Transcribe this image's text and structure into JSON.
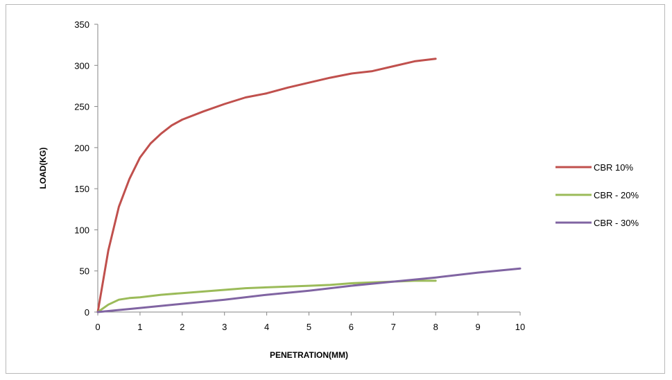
{
  "chart_data": {
    "type": "line",
    "title": "",
    "xlabel": "PENETRATION(MM)",
    "ylabel": "LOAD(KG)",
    "xlim": [
      0,
      10
    ],
    "ylim": [
      0,
      350
    ],
    "xticks": [
      0,
      1,
      2,
      3,
      4,
      5,
      6,
      7,
      8,
      9,
      10
    ],
    "yticks": [
      0,
      50,
      100,
      150,
      200,
      250,
      300,
      350
    ],
    "grid": false,
    "legend_position": "right",
    "series": [
      {
        "name": "CBR 10%",
        "color": "#c0504d",
        "x": [
          0,
          0.25,
          0.5,
          0.75,
          1,
          1.25,
          1.5,
          1.75,
          2,
          2.5,
          3,
          3.5,
          4,
          4.5,
          5,
          5.5,
          6,
          6.5,
          7,
          7.5,
          8
        ],
        "y": [
          0,
          75,
          128,
          162,
          188,
          205,
          217,
          227,
          234,
          244,
          253,
          261,
          266,
          273,
          279,
          285,
          290,
          293,
          299,
          305,
          308
        ]
      },
      {
        "name": "CBR  - 20%",
        "color": "#9bbb59",
        "x": [
          0,
          0.25,
          0.5,
          0.75,
          1,
          1.5,
          2,
          2.5,
          3,
          3.5,
          4,
          4.5,
          5,
          5.5,
          6,
          6.5,
          7,
          7.5,
          8
        ],
        "y": [
          0,
          9,
          15,
          17,
          18,
          21,
          23,
          25,
          27,
          29,
          30,
          31,
          32,
          33,
          35,
          36,
          37,
          38,
          38
        ]
      },
      {
        "name": "CBR  - 30%",
        "color": "#8064a2",
        "x": [
          0,
          1,
          2,
          3,
          4,
          5,
          6,
          7,
          8,
          9,
          10
        ],
        "y": [
          0,
          5,
          10,
          15,
          21,
          26,
          32,
          37,
          42,
          48,
          53
        ]
      }
    ]
  }
}
